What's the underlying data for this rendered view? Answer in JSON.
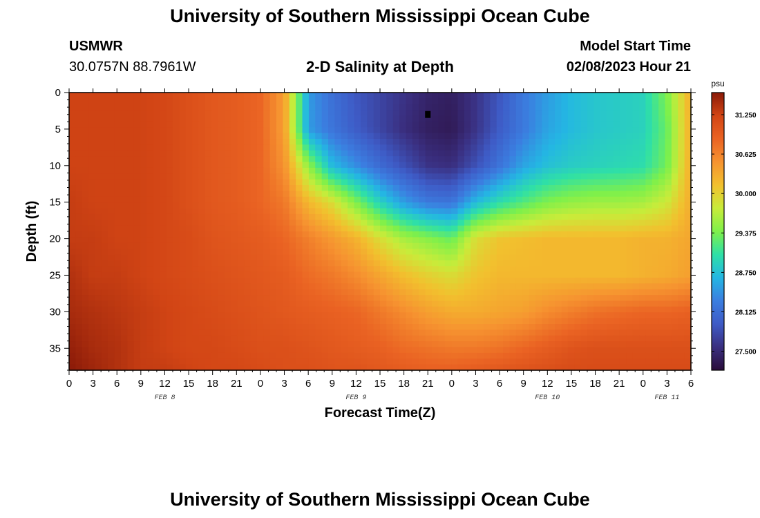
{
  "header": {
    "title": "University of Southern Mississippi Ocean Cube",
    "station": "USMWR",
    "coords": "30.0757N  88.7961W",
    "subtitle": "2-D Salinity at Depth",
    "model_label": "Model Start Time",
    "model_time": "02/08/2023 Hour 21"
  },
  "footer": {
    "title": "University of Southern Mississippi Ocean Cube"
  },
  "chart_data": {
    "type": "heatmap",
    "title": "2-D Salinity at Depth",
    "xlabel": "Forecast Time(Z)",
    "ylabel": "Depth (ft)",
    "x_tick_labels": [
      "0",
      "3",
      "6",
      "9",
      "12",
      "15",
      "18",
      "21",
      "0",
      "3",
      "6",
      "9",
      "12",
      "15",
      "18",
      "21",
      "0",
      "3",
      "6",
      "9",
      "12",
      "15",
      "18",
      "21",
      "0",
      "3",
      "6"
    ],
    "x_range_hours": [
      0,
      78
    ],
    "date_labels": [
      {
        "label": "FEB 8",
        "hour": 12
      },
      {
        "label": "FEB 9",
        "hour": 36
      },
      {
        "label": "FEB 10",
        "hour": 60
      },
      {
        "label": "FEB 11",
        "hour": 75
      }
    ],
    "y_ticks": [
      0,
      5,
      10,
      15,
      20,
      25,
      30,
      35
    ],
    "y_range_ft": [
      0,
      38
    ],
    "y_inverted": true,
    "colorbar": {
      "unit": "psu",
      "min": 27.2,
      "max": 31.6,
      "tick_values": [
        31.25,
        30.625,
        30.0,
        29.375,
        28.75,
        28.125,
        27.5
      ],
      "tick_labels": [
        "31.250",
        "30.625",
        "30.000",
        "29.375",
        "28.750",
        "28.125",
        "27.500"
      ],
      "colors": [
        "#2a0d3a",
        "#3a2f80",
        "#3e5bc6",
        "#3b7ee0",
        "#24b6e3",
        "#2fe0a6",
        "#7ff04a",
        "#c8ec3a",
        "#f2c02e",
        "#f69330",
        "#ea6323",
        "#d24515",
        "#8a1a08"
      ]
    },
    "salinity_grid": {
      "hours": [
        0,
        3,
        6,
        9,
        12,
        15,
        18,
        21,
        24,
        27,
        30,
        33,
        36,
        39,
        42,
        45,
        48,
        51,
        54,
        57,
        60,
        63,
        66,
        69,
        72,
        75,
        78
      ],
      "depths_ft": [
        0,
        5,
        10,
        15,
        20,
        25,
        30,
        35,
        38
      ],
      "values": [
        [
          31.25,
          31.25,
          31.25,
          31.25,
          31.2,
          31.1,
          31.0,
          30.95,
          30.85,
          30.4,
          28.5,
          28.15,
          27.9,
          27.75,
          27.6,
          27.45,
          27.4,
          27.6,
          27.9,
          28.25,
          28.5,
          28.7,
          28.8,
          28.85,
          28.9,
          29.4,
          30.3
        ],
        [
          31.25,
          31.25,
          31.25,
          31.25,
          31.2,
          31.1,
          31.0,
          30.95,
          30.85,
          30.4,
          28.5,
          28.2,
          27.95,
          27.75,
          27.55,
          27.4,
          27.35,
          27.6,
          27.95,
          28.25,
          28.55,
          28.7,
          28.8,
          28.85,
          28.9,
          29.3,
          30.3
        ],
        [
          31.25,
          31.25,
          31.25,
          31.25,
          31.2,
          31.1,
          31.0,
          30.95,
          30.85,
          30.5,
          29.5,
          28.7,
          28.4,
          28.1,
          27.85,
          27.6,
          27.55,
          27.85,
          28.2,
          28.55,
          28.75,
          28.85,
          28.9,
          28.95,
          29.0,
          29.35,
          30.3
        ],
        [
          31.3,
          31.25,
          31.25,
          31.25,
          31.2,
          31.1,
          31.0,
          30.95,
          30.85,
          30.7,
          30.2,
          29.9,
          29.4,
          28.9,
          28.5,
          28.25,
          28.2,
          28.7,
          29.0,
          29.2,
          29.4,
          29.5,
          29.55,
          29.55,
          29.6,
          29.8,
          30.3
        ],
        [
          31.3,
          31.3,
          31.25,
          31.25,
          31.2,
          31.15,
          31.05,
          31.0,
          30.95,
          30.85,
          30.65,
          30.45,
          30.25,
          29.9,
          29.6,
          29.45,
          29.3,
          29.9,
          30.1,
          30.15,
          30.2,
          30.2,
          30.2,
          30.2,
          30.25,
          30.25,
          30.35
        ],
        [
          31.4,
          31.3,
          31.3,
          31.25,
          31.2,
          31.15,
          31.1,
          31.05,
          31.0,
          30.95,
          30.8,
          30.7,
          30.55,
          30.35,
          30.15,
          30.0,
          29.9,
          30.1,
          30.2,
          30.2,
          30.2,
          30.2,
          30.2,
          30.2,
          30.25,
          30.3,
          30.4
        ],
        [
          31.45,
          31.4,
          31.35,
          31.3,
          31.25,
          31.2,
          31.15,
          31.1,
          31.05,
          31.0,
          30.95,
          30.9,
          30.85,
          30.7,
          30.55,
          30.4,
          30.3,
          30.3,
          30.35,
          30.4,
          30.55,
          30.65,
          30.75,
          30.8,
          30.85,
          30.85,
          30.9
        ],
        [
          31.55,
          31.45,
          31.4,
          31.3,
          31.25,
          31.2,
          31.2,
          31.15,
          31.1,
          31.1,
          31.05,
          31.0,
          30.95,
          30.9,
          30.8,
          30.75,
          30.7,
          30.7,
          30.75,
          30.85,
          30.95,
          31.05,
          31.1,
          31.1,
          31.1,
          31.1,
          31.1
        ],
        [
          31.6,
          31.5,
          31.4,
          31.3,
          31.3,
          31.25,
          31.2,
          31.2,
          31.15,
          31.1,
          31.1,
          31.05,
          31.05,
          31.0,
          30.95,
          30.9,
          30.9,
          30.95,
          31.0,
          31.05,
          31.1,
          31.15,
          31.15,
          31.15,
          31.15,
          31.15,
          31.15
        ]
      ]
    },
    "marker": {
      "hour": 45,
      "depth_ft": 3,
      "color": "#000000"
    }
  }
}
